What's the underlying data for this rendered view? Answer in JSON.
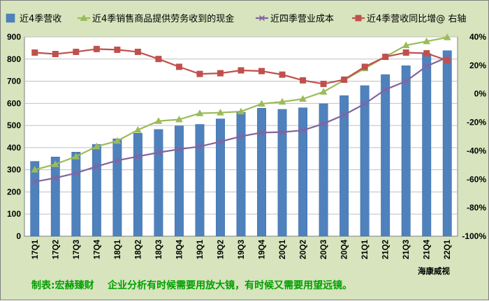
{
  "chart_data": {
    "type": "bar",
    "categories": [
      "17Q1",
      "17Q2",
      "17Q3",
      "17Q4",
      "18Q1",
      "18Q2",
      "18Q3",
      "18Q4",
      "19Q1",
      "19Q2",
      "19Q3",
      "19Q4",
      "20Q1",
      "20Q2",
      "20Q3",
      "20Q4",
      "21Q1",
      "21Q2",
      "21Q3",
      "21Q4",
      "22Q1"
    ],
    "series": [
      {
        "name": "近4季营收",
        "kind": "bar",
        "axis": "left",
        "color": "#4f81bd",
        "values": [
          338,
          358,
          380,
          415,
          440,
          465,
          482,
          498,
          505,
          530,
          560,
          578,
          573,
          580,
          598,
          635,
          680,
          730,
          770,
          825,
          838
        ]
      },
      {
        "name": "近4季销售商品提供劳务收到的现金",
        "kind": "line",
        "axis": "left",
        "marker": "triangle",
        "color": "#9bbb59",
        "values": [
          300,
          325,
          360,
          405,
          430,
          480,
          520,
          527,
          555,
          558,
          563,
          598,
          607,
          620,
          652,
          705,
          758,
          810,
          862,
          880,
          898
        ]
      },
      {
        "name": "近四季营业成本",
        "kind": "line",
        "axis": "left",
        "marker": "x",
        "color": "#8064a2",
        "values": [
          246,
          263,
          285,
          315,
          342,
          360,
          378,
          393,
          405,
          427,
          451,
          468,
          470,
          478,
          508,
          548,
          598,
          662,
          700,
          768,
          808
        ]
      },
      {
        "name": "近4季营收同比增@ 右轴",
        "kind": "line",
        "axis": "right",
        "marker": "square",
        "color": "#c0504d",
        "values": [
          29,
          28,
          29.5,
          31.5,
          31,
          29.5,
          24.5,
          19,
          14,
          14.5,
          16.5,
          16,
          13.5,
          9.5,
          7,
          10,
          19,
          26,
          29,
          28.5,
          23.5
        ]
      }
    ],
    "y_left": {
      "min": 0,
      "max": 900,
      "step": 100,
      "ticks": [
        "0",
        "100",
        "200",
        "300",
        "400",
        "500",
        "600",
        "700",
        "800",
        "900"
      ]
    },
    "y_right": {
      "min": -100,
      "max": 40,
      "step": 20,
      "ticks": [
        "-100%",
        "-80%",
        "-60%",
        "-40%",
        "-20%",
        "0%",
        "20%",
        "40%"
      ]
    },
    "grid": true,
    "legend_position": "top"
  },
  "credit": "海康威视",
  "caption": "制表:宏赫臻财    企业分析有时候需要用放大镜，有时候又需要用望远镜。"
}
